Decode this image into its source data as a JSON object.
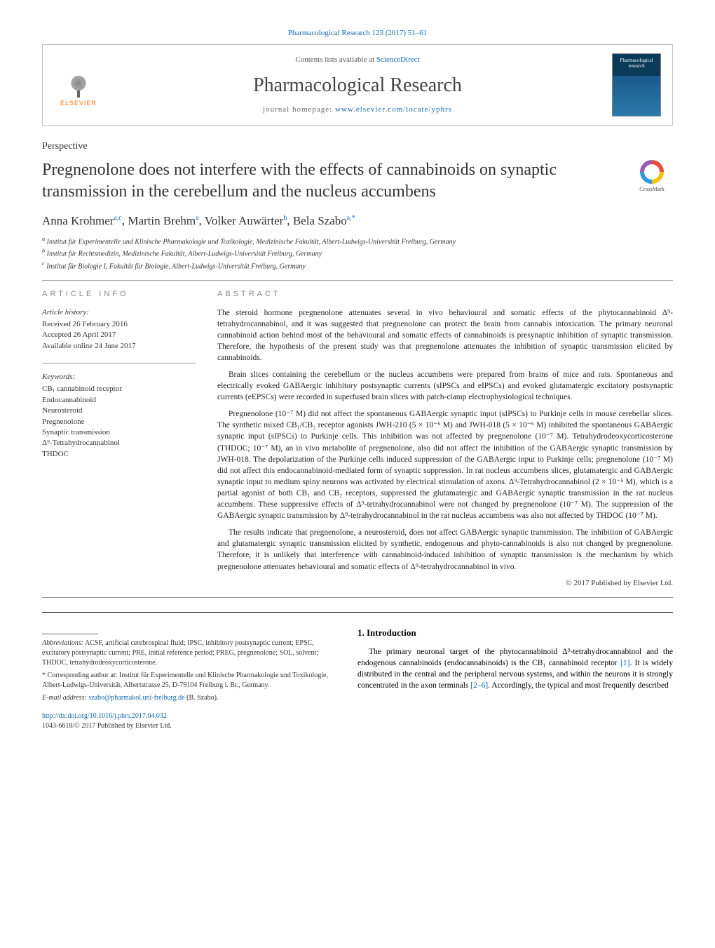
{
  "journal_ref": "Pharmacological Research 123 (2017) 51–61",
  "header": {
    "elsevier": "ELSEVIER",
    "contents_prefix": "Contents lists available at ",
    "contents_link": "ScienceDirect",
    "journal_name": "Pharmacological Research",
    "homepage_prefix": "journal homepage: ",
    "homepage_url": "www.elsevier.com/locate/yphrs",
    "cover_line1": "Pharmacological",
    "cover_line2": "research"
  },
  "article_type": "Perspective",
  "title": "Pregnenolone does not interfere with the effects of cannabinoids on synaptic transmission in the cerebellum and the nucleus accumbens",
  "crossmark": "CrossMark",
  "authors_html": "Anna Krohmer<sup>a,c</sup>, Martin Brehm<sup>a</sup>, Volker Auwärter<sup>b</sup>, Bela Szabo<sup>a,*</sup>",
  "affiliations": [
    "a Institut für Experimentelle und Klinische Pharmakologie und Toxikologie, Medizinische Fakultät, Albert-Ludwigs-Universität Freiburg, Germany",
    "b Institut für Rechtsmedizin, Medizinische Fakultät, Albert-Ludwigs-Universität Freiburg, Germany",
    "c Institut für Biologie I, Fakultät für Biologie, Albert-Ludwigs-Universität Freiburg, Germany"
  ],
  "article_info": {
    "label": "ARTICLE INFO",
    "history_label": "Article history:",
    "history": [
      "Received 26 February 2016",
      "Accepted 26 April 2017",
      "Available online 24 June 2017"
    ],
    "keywords_label": "Keywords:",
    "keywords": [
      "CB₁ cannabinoid receptor",
      "Endocannabinoid",
      "Neurosteroid",
      "Pregnenolone",
      "Synaptic transmission",
      "Δ⁹-Tetrahydrocannabinol",
      "THDOC"
    ]
  },
  "abstract": {
    "label": "ABSTRACT",
    "paragraphs": [
      "The steroid hormone pregnenolone attenuates several in vivo behavioural and somatic effects of the phytocannabinoid Δ⁹-tetrahydrocannabinol, and it was suggested that pregnenolone can protect the brain from cannabis intoxication. The primary neuronal cannabinoid action behind most of the behavioural and somatic effects of cannabinoids is presynaptic inhibition of synaptic transmission. Therefore, the hypothesis of the present study was that pregnenolone attenuates the inhibition of synaptic transmission elicited by cannabinoids.",
      "Brain slices containing the cerebellum or the nucleus accumbens were prepared from brains of mice and rats. Spontaneous and electrically evoked GABAergic inhibitory postsynaptic currents (sIPSCs and eIPSCs) and evoked glutamatergic excitatory postsynaptic currents (eEPSCs) were recorded in superfused brain slices with patch-clamp electrophysiological techniques.",
      "Pregnenolone (10⁻⁷ M) did not affect the spontaneous GABAergic synaptic input (sIPSCs) to Purkinje cells in mouse cerebellar slices. The synthetic mixed CB₁/CB₂ receptor agonists JWH-210 (5 × 10⁻⁶ M) and JWH-018 (5 × 10⁻⁶ M) inhibited the spontaneous GABAergic synaptic input (sIPSCs) to Purkinje cells. This inhibition was not affected by pregnenolone (10⁻⁷ M). Tetrahydrodeoxycorticosterone (THDOC; 10⁻⁷ M), an in vivo metabolite of pregnenolone, also did not affect the inhibition of the GABAergic synaptic transmission by JWH-018. The depolarization of the Purkinje cells induced suppression of the GABAergic input to Purkinje cells; pregnenolone (10⁻⁷ M) did not affect this endocannabinoid-mediated form of synaptic suppression. In rat nucleus accumbens slices, glutamatergic and GABAergic synaptic input to medium spiny neurons was activated by electrical stimulation of axons. Δ⁹-Tetrahydrocannabinol (2 × 10⁻⁵ M), which is a partial agonist of both CB₁ and CB₂ receptors, suppressed the glutamatergic and GABAergic synaptic transmission in the rat nucleus accumbens. These suppressive effects of Δ⁹-tetrahydrocannabinol were not changed by pregnenolone (10⁻⁷ M). The suppression of the GABAergic synaptic transmission by Δ⁹-tetrahydrocannabinol in the rat nucleus accumbens was also not affected by THDOC (10⁻⁷ M).",
      "The results indicate that pregnenolone, a neurosteroid, does not affect GABAergic synaptic transmission. The inhibition of GABAergic and glutamatergic synaptic transmission elicited by synthetic, endogenous and phyto-cannabinoids is also not changed by pregnenolone. Therefore, it is unlikely that interference with cannabinoid-induced inhibition of synaptic transmission is the mechanism by which pregnenolone attenuates behavioural and somatic effects of Δ⁹-tetrahydrocannabinol in vivo."
    ],
    "copyright": "© 2017 Published by Elsevier Ltd."
  },
  "footnotes": {
    "abbrev_label": "Abbreviations:",
    "abbrev_text": "ACSF, artificial cerebrospinal fluid; IPSC, inhibitory postsynaptic current; EPSC, excitatory postsynaptic current; PRE, initial reference period; PREG, pregnenolone; SOL, solvent; THDOC, tetrahydrodeoxycorticosterone.",
    "corresp_label": "* Corresponding author at:",
    "corresp_text": "Institut für Experimentelle und Klinische Pharmakologie und Toxikologie, Albert-Ludwigs-Universität, Albertstrasse 25, D-79104 Freiburg i. Br., Germany.",
    "email_label": "E-mail address:",
    "email": "szabo@pharmakol.uni-freiburg.de",
    "email_suffix": "(B. Szabo)."
  },
  "intro": {
    "heading": "1. Introduction",
    "text": "The primary neuronal target of the phytocannabinoid Δ⁹-tetrahydrocannabinol and the endogenous cannabinoids (endocannabinoids) is the CB₁ cannabinoid receptor [1]. It is widely distributed in the central and the peripheral nervous systems, and within the neurons it is strongly concentrated in the axon terminals [2–6]. Accordingly, the typical and most frequently described"
  },
  "doi": {
    "url": "http://dx.doi.org/10.1016/j.phrs.2017.04.032",
    "issn_line": "1043-6618/© 2017 Published by Elsevier Ltd."
  },
  "colors": {
    "link_blue": "#1169b0",
    "orange": "#ff6600",
    "gray_border": "#c0c0c0",
    "text_gray": "#888"
  }
}
